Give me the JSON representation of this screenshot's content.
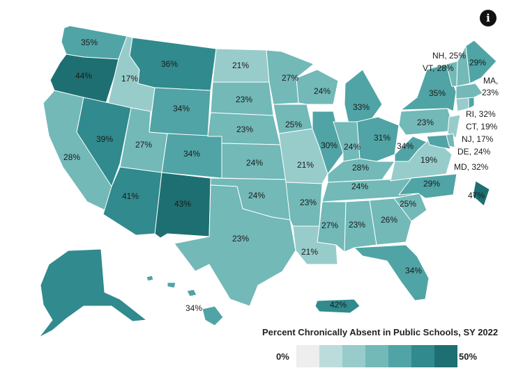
{
  "info_icon": "info-icon",
  "legend": {
    "title": "Percent Chronically Absent in Public Schools, SY 2022",
    "min_label": "0%",
    "max_label": "50%",
    "swatches": [
      "#eeeeee",
      "#bcdcdc",
      "#97cccb",
      "#72b9b8",
      "#50a4a5",
      "#318a8d",
      "#1e6f72"
    ]
  },
  "states": [
    {
      "name": "Washington",
      "label": "35%",
      "value": 35
    },
    {
      "name": "Oregon",
      "label": "44%",
      "value": 44
    },
    {
      "name": "California",
      "label": "28%",
      "value": 28
    },
    {
      "name": "Idaho",
      "label": "17%",
      "value": 17
    },
    {
      "name": "Nevada",
      "label": "39%",
      "value": 39
    },
    {
      "name": "Montana",
      "label": "36%",
      "value": 36
    },
    {
      "name": "Wyoming",
      "label": "34%",
      "value": 34
    },
    {
      "name": "Utah",
      "label": "27%",
      "value": 27
    },
    {
      "name": "Arizona",
      "label": "41%",
      "value": 41
    },
    {
      "name": "Colorado",
      "label": "34%",
      "value": 34
    },
    {
      "name": "New Mexico",
      "label": "43%",
      "value": 43
    },
    {
      "name": "North Dakota",
      "label": "21%",
      "value": 21
    },
    {
      "name": "South Dakota",
      "label": "23%",
      "value": 23
    },
    {
      "name": "Nebraska",
      "label": "23%",
      "value": 23
    },
    {
      "name": "Kansas",
      "label": "24%",
      "value": 24
    },
    {
      "name": "Oklahoma",
      "label": "24%",
      "value": 24
    },
    {
      "name": "Texas",
      "label": "23%",
      "value": 23
    },
    {
      "name": "Minnesota",
      "label": "27%",
      "value": 27
    },
    {
      "name": "Iowa",
      "label": "25%",
      "value": 25
    },
    {
      "name": "Missouri",
      "label": "21%",
      "value": 21
    },
    {
      "name": "Arkansas",
      "label": "23%",
      "value": 23
    },
    {
      "name": "Louisiana",
      "label": "21%",
      "value": 21
    },
    {
      "name": "Wisconsin",
      "label": "24%",
      "value": 24
    },
    {
      "name": "Illinois",
      "label": "30%",
      "value": 30
    },
    {
      "name": "Michigan",
      "label": "33%",
      "value": 33
    },
    {
      "name": "Indiana",
      "label": "24%",
      "value": 24
    },
    {
      "name": "Ohio",
      "label": "31%",
      "value": 31
    },
    {
      "name": "Kentucky",
      "label": "28%",
      "value": 28
    },
    {
      "name": "Tennessee",
      "label": "24%",
      "value": 24
    },
    {
      "name": "Mississippi",
      "label": "27%",
      "value": 27
    },
    {
      "name": "Alabama",
      "label": "23%",
      "value": 23
    },
    {
      "name": "Georgia",
      "label": "26%",
      "value": 26
    },
    {
      "name": "Florida",
      "label": "34%",
      "value": 34
    },
    {
      "name": "South Carolina",
      "label": "25%",
      "value": 25
    },
    {
      "name": "North Carolina",
      "label": "29%",
      "value": 29
    },
    {
      "name": "Virginia",
      "label": "19%",
      "value": 19
    },
    {
      "name": "West Virginia",
      "label": "34%",
      "value": 34
    },
    {
      "name": "Pennsylvania",
      "label": "23%",
      "value": 23
    },
    {
      "name": "New York",
      "label": "35%",
      "value": 35
    },
    {
      "name": "Maine",
      "label": "29%",
      "value": 29
    },
    {
      "name": "District of Columbia",
      "label": "47%",
      "value": 47
    },
    {
      "name": "Alaska",
      "label": "",
      "value": 36
    },
    {
      "name": "Hawaii",
      "label": "34%",
      "value": 34
    },
    {
      "name": "Puerto Rico",
      "label": "42%",
      "value": 42
    }
  ],
  "small_states": [
    {
      "name": "New Hampshire",
      "label": "NH, 25%",
      "value": 25
    },
    {
      "name": "Vermont",
      "label": "VT, 28%",
      "value": 28
    },
    {
      "name": "Massachusetts",
      "label_line1": "MA,",
      "label_line2": "23%",
      "value": 23
    },
    {
      "name": "Rhode Island",
      "label": "RI, 32%",
      "value": 32
    },
    {
      "name": "Connecticut",
      "label": "CT, 19%",
      "value": 19
    },
    {
      "name": "New Jersey",
      "label": "NJ, 17%",
      "value": 17
    },
    {
      "name": "Delaware",
      "label": "DE, 24%",
      "value": 24
    },
    {
      "name": "Maryland",
      "label": "MD, 32%",
      "value": 32
    }
  ]
}
